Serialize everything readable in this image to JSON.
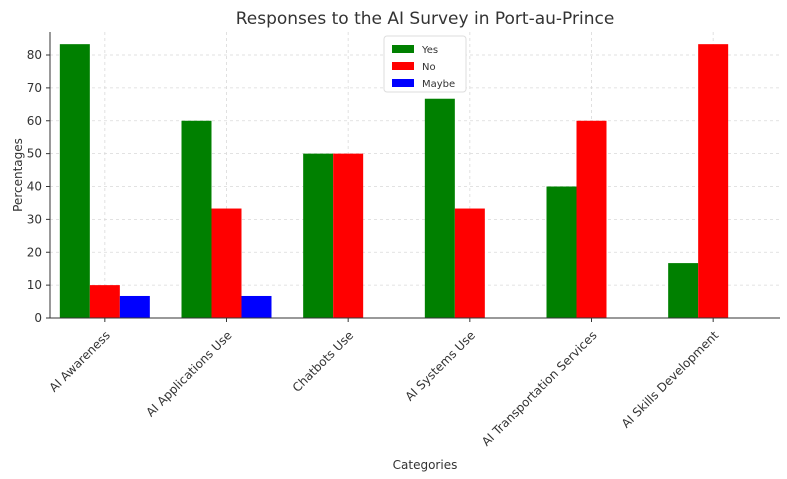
{
  "chart_data": {
    "type": "bar",
    "title": "Responses to the AI Survey in Port-au-Prince",
    "xlabel": "Categories",
    "ylabel": "Percentages",
    "categories": [
      "AI Awareness",
      "AI Applications Use",
      "Chatbots Use",
      "AI Systems Use",
      "AI Transportation Services",
      "AI Skills Development"
    ],
    "series": [
      {
        "name": "Yes",
        "color": "#008000",
        "values": [
          83.3,
          60,
          50,
          66.7,
          40,
          16.7
        ]
      },
      {
        "name": "No",
        "color": "#ff0000",
        "values": [
          10,
          33.3,
          50,
          33.3,
          60,
          83.3
        ]
      },
      {
        "name": "Maybe",
        "color": "#0000ff",
        "values": [
          6.7,
          6.7,
          0,
          0,
          0,
          0
        ]
      }
    ],
    "ylim": [
      0,
      87
    ],
    "yticks": [
      0,
      10,
      20,
      30,
      40,
      50,
      60,
      70,
      80
    ],
    "grid": true,
    "legend_position": "top-center"
  }
}
